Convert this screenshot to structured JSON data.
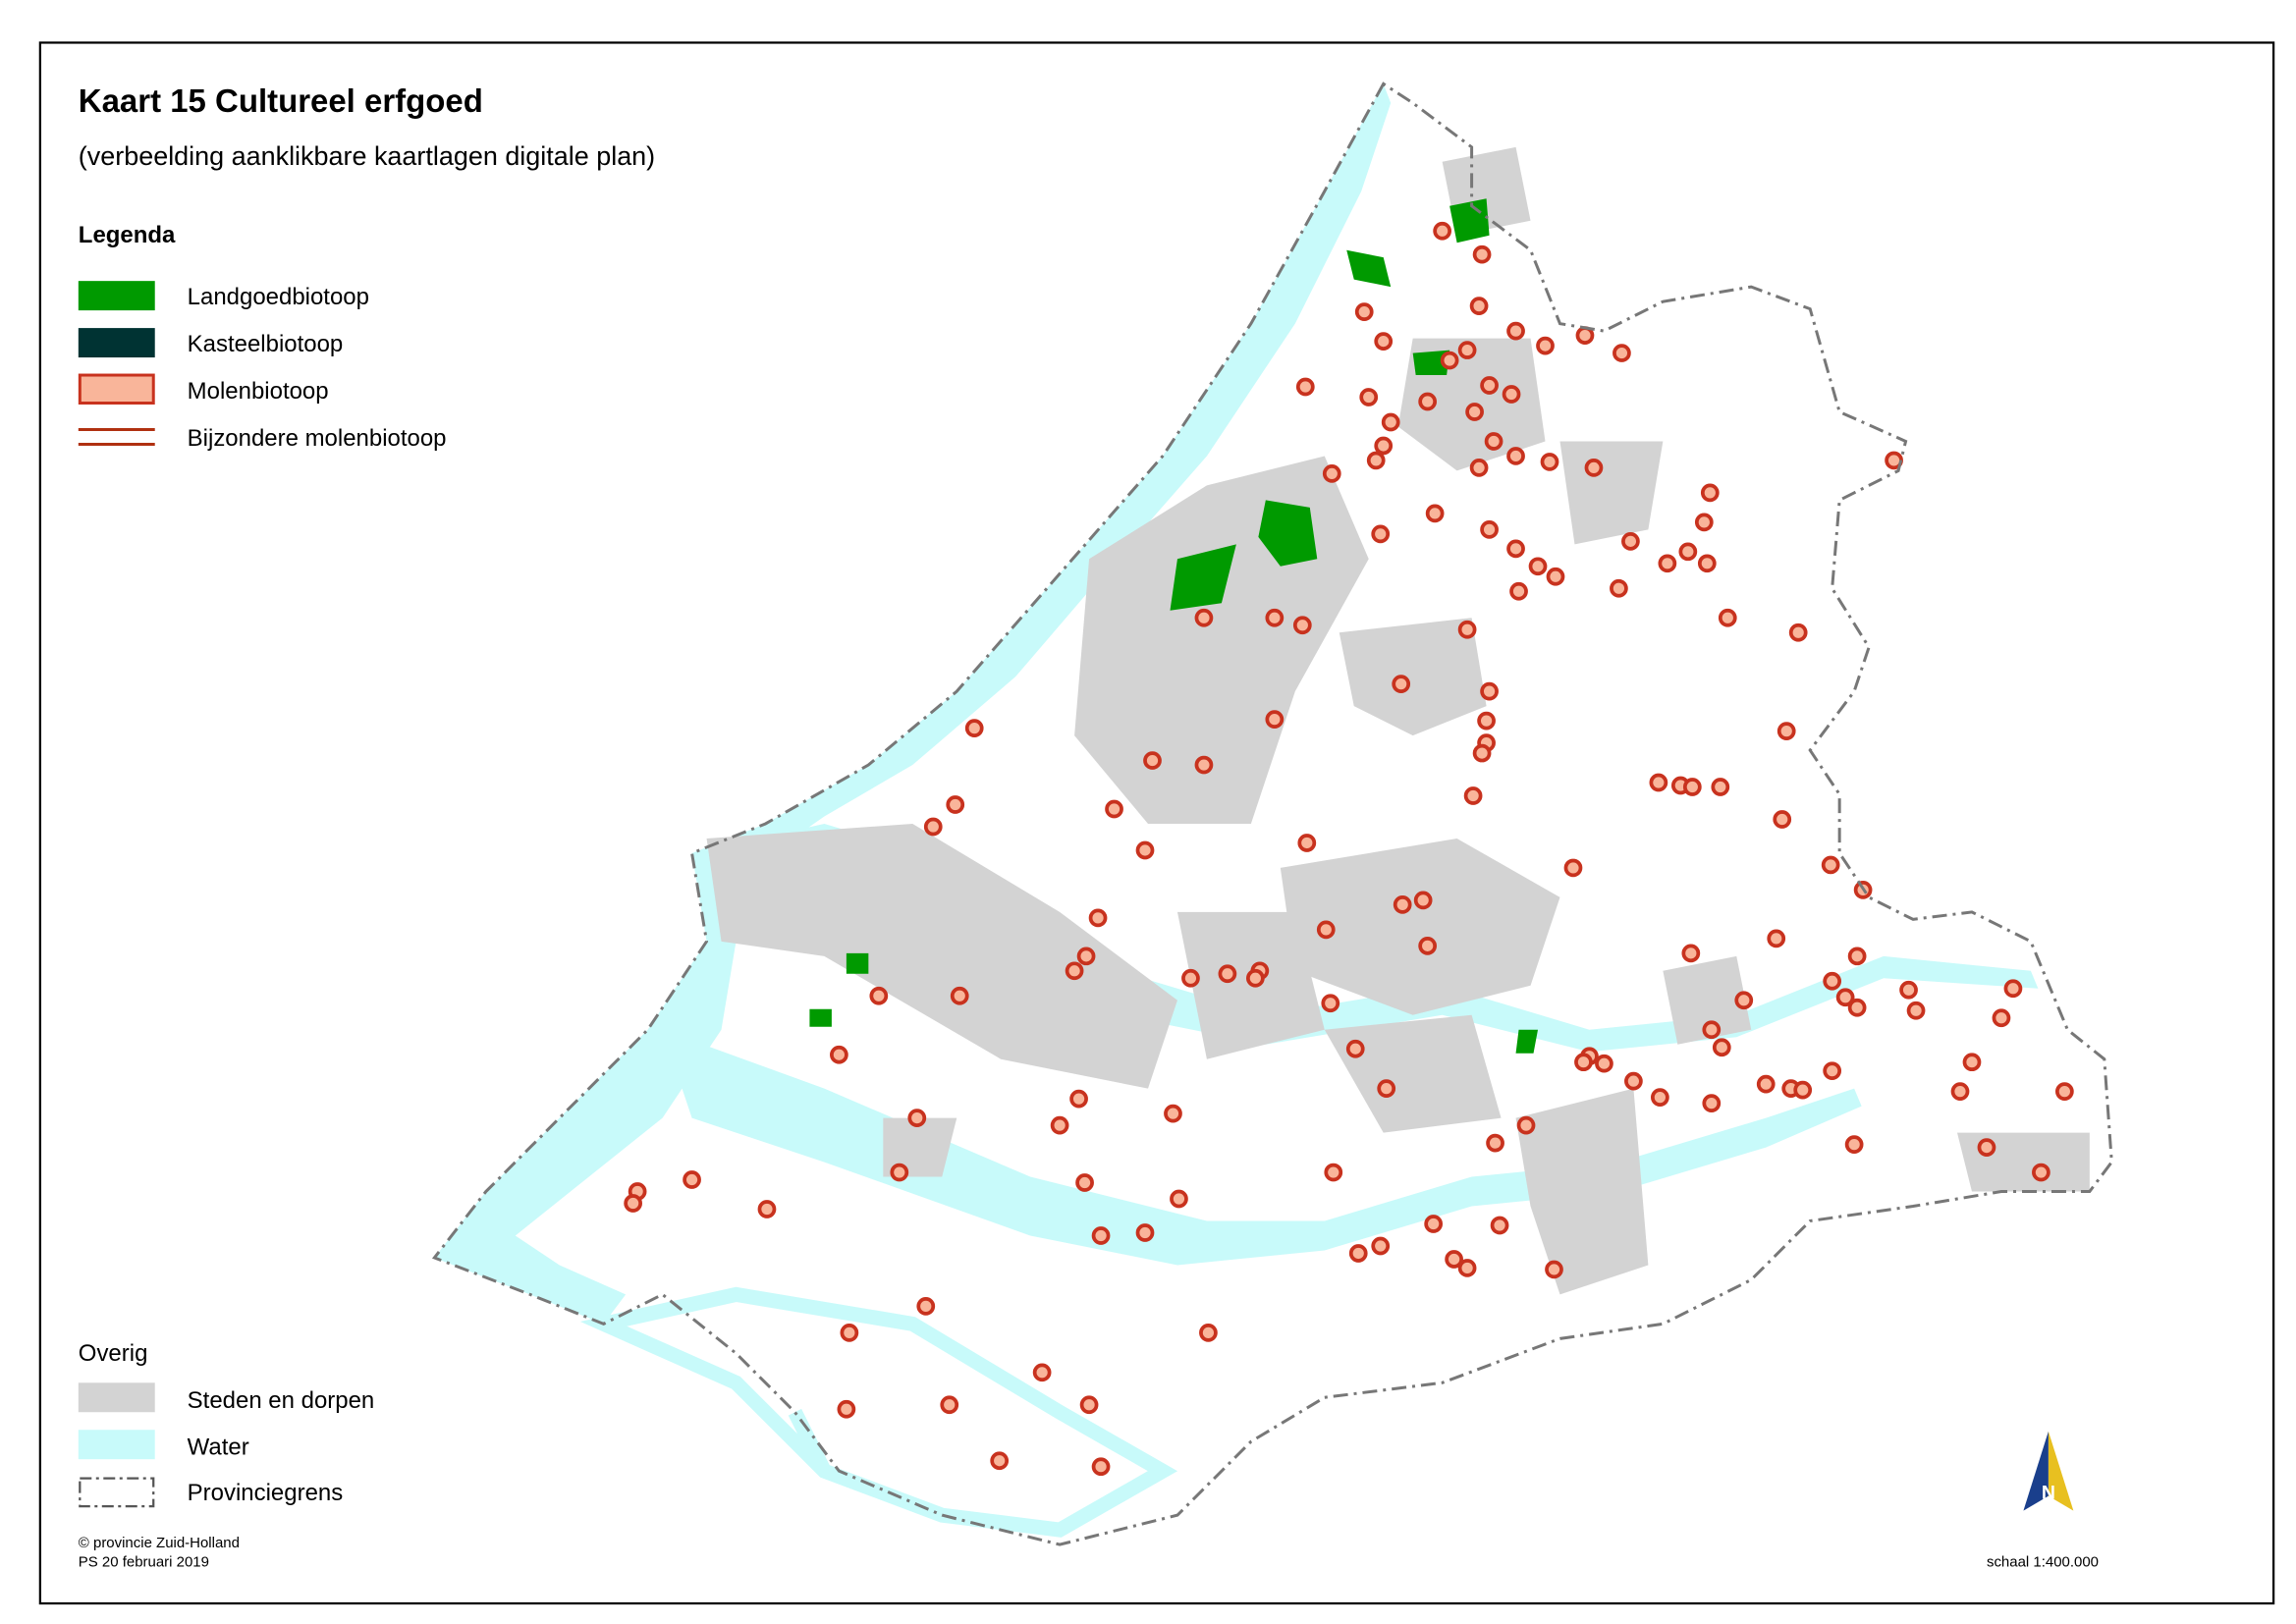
{
  "header": {
    "title": "Kaart 15  Cultureel erfgoed",
    "subtitle": "(verbeelding aanklikbare kaartlagen digitale plan)"
  },
  "legend": {
    "title": "Legenda",
    "items": [
      "Landgoedbiotoop",
      "Kasteelbiotoop",
      "Molenbiotoop",
      "Bijzondere molenbiotoop"
    ]
  },
  "other": {
    "title": "Overig",
    "items": [
      "Steden en dorpen",
      "Water",
      "Provinciegrens"
    ]
  },
  "footer": {
    "copyright": "© provincie Zuid-Holland",
    "date": "PS 20 februari 2019",
    "scale": "schaal 1:400.000"
  },
  "north_arrow": {
    "label": "N"
  }
}
